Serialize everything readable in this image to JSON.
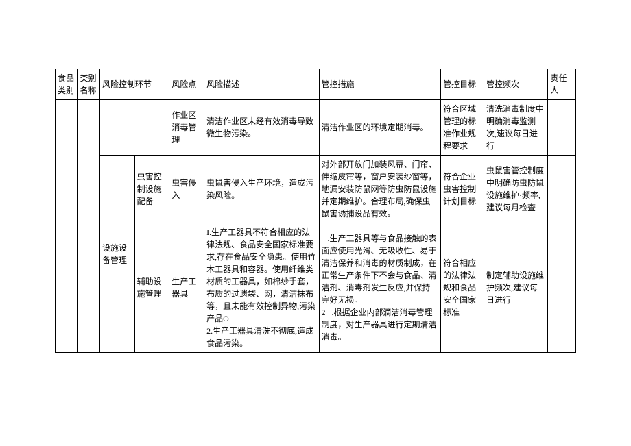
{
  "headers": {
    "col1": "食品类别",
    "col2": "类别名称",
    "col3": "风险控制环节",
    "col5": "风险点",
    "col6": "风险描述",
    "col7": "管控措施",
    "col8": "管控目标",
    "col9": "管控频次",
    "col10": "责任人"
  },
  "rows": {
    "r1": {
      "link": "",
      "link2": "",
      "point": "作业区消毒管理",
      "desc": "清洁作业区未经有效消毒导致微生物污染。",
      "measure": "清洁作业区的环境定期消毒。",
      "target": "符合区域管理的标准作业规程要求",
      "freq": "清洗消毒制度中明确消毒监测次,速议每日进行",
      "resp": ""
    },
    "r2": {
      "link": "设施设备管理",
      "link2": "虫害控制设施配备",
      "point": "虫害侵入",
      "desc": "虫鼠害侵入生产环境，造成污染风险。",
      "measure": "对外部开放门加装风幕、门帘、伸缩皮帘等，窗户安装纱窗等，地漏安装防鼠网等防虫防鼠设施并定期维护。合理布局,确保虫鼠害诱捕设品有效。",
      "target": "符合企业虫害控制计划目标",
      "freq": "虫鼠害管控制度中明确防虫防鼠设施维护·频率,建议每月检查",
      "resp": ""
    },
    "r3": {
      "link2": "辅助设施管理",
      "point": "生产工器具",
      "desc": "I.生产工器具不符合相应的法律法规、食品安全国家标准要求,存在食品安全隐患。使用竹木工器具和容器。使用纤维类材质的工器具，如棉纱手套，布质的过遗袋、网，清洁抹布等，且未能有效控制异物,污染产品O\n2.生产工器具清洗不彻底,造成食品污染。",
      "measure": "   .生产工器具等与食品接触的表面应使用光滑、无吸收性、易于清洁保养和消毒的材质制成，在正常生产条件下不会与食品、清洁剂、消毒剂发生反应,并保持完好无损。\n2   .根据企业内部滴洁消毒管理制度，对生产器具进行定期清洁消毒。",
      "target": "符合相应的法律法规和食品安全国家标准",
      "freq": "制定辅助设施维护频次,建议每日进行",
      "resp": ""
    }
  },
  "style": {
    "border_color": "#000000",
    "background": "#ffffff",
    "font_size": 12,
    "text_color": "#000000"
  }
}
